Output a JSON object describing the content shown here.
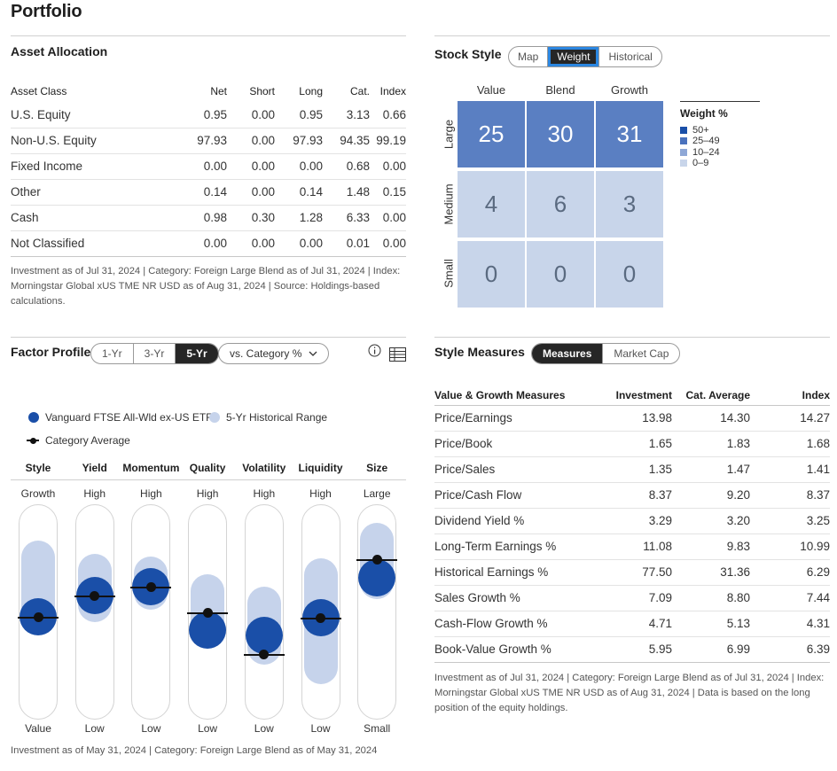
{
  "page": {
    "title": "Portfolio"
  },
  "asset_allocation": {
    "title": "Asset Allocation",
    "columns": [
      "Asset Class",
      "Net",
      "Short",
      "Long",
      "Cat.",
      "Index"
    ],
    "rows": [
      [
        "U.S. Equity",
        "0.95",
        "0.00",
        "0.95",
        "3.13",
        "0.66"
      ],
      [
        "Non-U.S. Equity",
        "97.93",
        "0.00",
        "97.93",
        "94.35",
        "99.19"
      ],
      [
        "Fixed Income",
        "0.00",
        "0.00",
        "0.00",
        "0.68",
        "0.00"
      ],
      [
        "Other",
        "0.14",
        "0.00",
        "0.14",
        "1.48",
        "0.15"
      ],
      [
        "Cash",
        "0.98",
        "0.30",
        "1.28",
        "6.33",
        "0.00"
      ],
      [
        "Not Classified",
        "0.00",
        "0.00",
        "0.00",
        "0.01",
        "0.00"
      ]
    ],
    "note": "Investment as of Jul 31, 2024 | Category: Foreign Large Blend as of Jul 31, 2024 | Index: Morningstar Global xUS TME NR USD as of Aug 31, 2024 | Source: Holdings-based calculations."
  },
  "stock_style": {
    "title": "Stock Style",
    "tabs": [
      "Map",
      "Weight",
      "Historical"
    ],
    "active_tab": "Weight",
    "columns": [
      "Value",
      "Blend",
      "Growth"
    ],
    "rows": [
      "Large",
      "Medium",
      "Small"
    ],
    "values": [
      [
        "25",
        "30",
        "31"
      ],
      [
        "4",
        "6",
        "3"
      ],
      [
        "0",
        "0",
        "0"
      ]
    ],
    "legend_title": "Weight %",
    "legend": [
      {
        "label": "50+",
        "color": "#1a4fa8"
      },
      {
        "label": "25–49",
        "color": "#4a72bd"
      },
      {
        "label": "10–24",
        "color": "#8ea7d6"
      },
      {
        "label": "0–9",
        "color": "#c8d5ea"
      }
    ]
  },
  "factor_profile": {
    "title": "Factor Profile",
    "tabs": [
      "1-Yr",
      "3-Yr",
      "5-Yr"
    ],
    "active_tab": "5-Yr",
    "dropdown": "vs. Category %",
    "legend": {
      "fund": "Vanguard FTSE All-Wld ex-US ETF",
      "range": "5-Yr Historical Range",
      "category": "Category Average"
    },
    "factors": [
      {
        "name": "Style",
        "top": "Growth",
        "bottom": "Value"
      },
      {
        "name": "Yield",
        "top": "High",
        "bottom": "Low"
      },
      {
        "name": "Momentum",
        "top": "High",
        "bottom": "Low"
      },
      {
        "name": "Quality",
        "top": "High",
        "bottom": "Low"
      },
      {
        "name": "Volatility",
        "top": "High",
        "bottom": "Low"
      },
      {
        "name": "Liquidity",
        "top": "High",
        "bottom": "Low"
      },
      {
        "name": "Size",
        "top": "Large",
        "bottom": "Small"
      }
    ],
    "note": "Investment as of May 31, 2024 | Category: Foreign Large Blend as of May 31, 2024"
  },
  "style_measures": {
    "title": "Style Measures",
    "tabs": [
      "Measures",
      "Market Cap"
    ],
    "active_tab": "Measures",
    "columns": [
      "Value & Growth Measures",
      "Investment",
      "Cat. Average",
      "Index"
    ],
    "rows": [
      [
        "Price/Earnings",
        "13.98",
        "14.30",
        "14.27"
      ],
      [
        "Price/Book",
        "1.65",
        "1.83",
        "1.68"
      ],
      [
        "Price/Sales",
        "1.35",
        "1.47",
        "1.41"
      ],
      [
        "Price/Cash Flow",
        "8.37",
        "9.20",
        "8.37"
      ],
      [
        "Dividend Yield %",
        "3.29",
        "3.20",
        "3.25"
      ],
      [
        "Long-Term Earnings %",
        "11.08",
        "9.83",
        "10.99"
      ],
      [
        "Historical Earnings %",
        "77.50",
        "31.36",
        "6.29"
      ],
      [
        "Sales Growth %",
        "7.09",
        "8.80",
        "7.44"
      ],
      [
        "Cash-Flow Growth %",
        "4.71",
        "5.13",
        "4.31"
      ],
      [
        "Book-Value Growth %",
        "5.95",
        "6.99",
        "6.39"
      ]
    ],
    "note": "Investment as of Jul 31, 2024 | Category: Foreign Large Blend as of Jul 31, 2024 | Index: Morningstar Global xUS TME NR USD as of Aug 31, 2024 | Data is based on the long position of the equity holdings."
  }
}
